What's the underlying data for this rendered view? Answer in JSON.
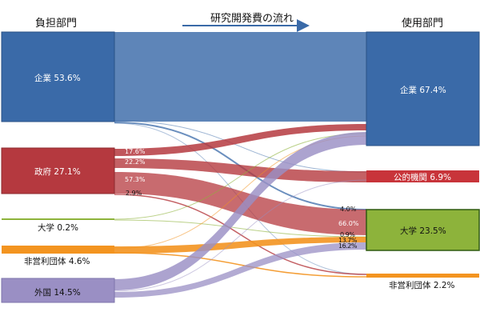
{
  "headers": {
    "source_column": "負担部門",
    "flow_title": "研究開発費の流れ",
    "target_column": "使用部門"
  },
  "colors": {
    "company": "#3a6aa8",
    "government": "#b5393f",
    "university": "#8db33b",
    "nonprofit": "#f39420",
    "foreign": "#9a8fc4",
    "public_institution": "#c8343a"
  },
  "sources": [
    {
      "id": "company",
      "label": "企業 53.6%"
    },
    {
      "id": "government",
      "label": "政府 27.1%"
    },
    {
      "id": "university",
      "label": "大学 0.2%"
    },
    {
      "id": "nonprofit",
      "label": "非営利団体 4.6%"
    },
    {
      "id": "foreign",
      "label": "外国 14.5%"
    }
  ],
  "targets": [
    {
      "id": "company",
      "label": "企業 67.4%"
    },
    {
      "id": "public_institution",
      "label": "公的機関 6.9%"
    },
    {
      "id": "university",
      "label": "大学 23.5%"
    },
    {
      "id": "nonprofit",
      "label": "非営利団体 2.2%"
    }
  ],
  "flow_labels": {
    "gov_to_company": "17.6%",
    "gov_to_public": "22.2%",
    "gov_to_university": "57.3%",
    "gov_to_nonprofit": "2.9%",
    "university_in_from_company": "4.0%",
    "university_in_from_government": "66.0%",
    "university_in_from_university": "0.9%",
    "university_in_from_nonprofit": "13.7%",
    "university_in_from_foreign": "16.2%"
  }
}
